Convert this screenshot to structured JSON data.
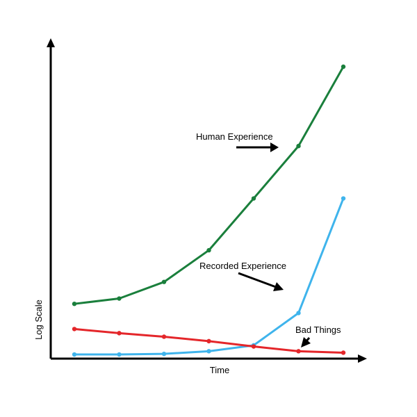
{
  "chart_data": {
    "type": "line",
    "title": "",
    "xlabel": "Time",
    "ylabel": "Log Scale",
    "log_scale_y": true,
    "x": [
      1,
      2,
      3,
      4,
      5,
      6,
      7
    ],
    "ylim": [
      0,
      100
    ],
    "grid": false,
    "legend": "none",
    "series": [
      {
        "values": [
          18.5,
          20.3,
          25.9,
          36.6,
          54.1,
          71.8,
          98.6
        ],
        "color": "#1a7f3c"
      },
      {
        "values": [
          1.4,
          1.4,
          1.6,
          2.5,
          4.5,
          15.4,
          54.1
        ],
        "color": "#3fb4ec"
      },
      {
        "values": [
          10.0,
          8.6,
          7.4,
          5.9,
          4.1,
          2.5,
          2.0
        ],
        "color": "#e4262a"
      }
    ],
    "annotations": [
      {
        "text": "Human Experience",
        "series_index": 0
      },
      {
        "text": "Recorded Experience",
        "series_index": 1
      },
      {
        "text": "Bad Things",
        "series_index": 2
      }
    ]
  }
}
